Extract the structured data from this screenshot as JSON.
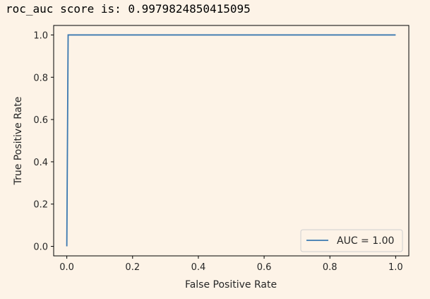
{
  "output": {
    "text": "roc_auc score is: 0.9979824850415095"
  },
  "colors": {
    "background": "#fdf3e7",
    "line": "#3a78b0",
    "axis": "#000000",
    "text": "#262626"
  },
  "chart_data": {
    "type": "line",
    "title": "",
    "xlabel": "False Positive Rate",
    "ylabel": "True Positive Rate",
    "xlim": [
      -0.04,
      1.04
    ],
    "ylim": [
      -0.045,
      1.045
    ],
    "xticks": [
      0.0,
      0.2,
      0.4,
      0.6,
      0.8,
      1.0
    ],
    "xtick_labels": [
      "0.0",
      "0.2",
      "0.4",
      "0.6",
      "0.8",
      "1.0"
    ],
    "yticks": [
      0.0,
      0.2,
      0.4,
      0.6,
      0.8,
      1.0
    ],
    "ytick_labels": [
      "0.0",
      "0.2",
      "0.4",
      "0.6",
      "0.8",
      "1.0"
    ],
    "grid": false,
    "legend_position": "lower-right",
    "series": [
      {
        "name": "AUC = 1.00",
        "x": [
          0.0,
          0.0,
          0.004,
          1.0
        ],
        "y": [
          0.0,
          0.0,
          1.0,
          1.0
        ]
      }
    ]
  }
}
